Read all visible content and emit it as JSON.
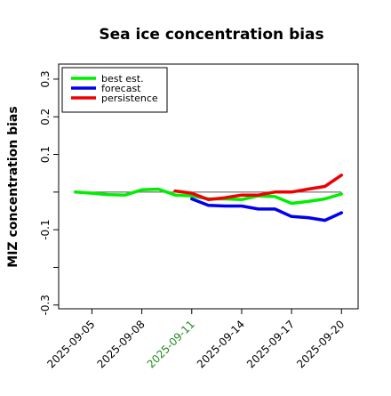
{
  "chart_data": {
    "type": "line",
    "title": "Sea ice concentration bias",
    "xlabel": "",
    "ylabel": "MIZ concentration bias",
    "ylim": [
      -0.31,
      0.34
    ],
    "xlim": [
      "2025-09-03",
      "2025-09-21"
    ],
    "reference_line": 0,
    "grid": false,
    "legend_position": "top-left",
    "y_ticks": [
      {
        "value": 0.3,
        "label": "0.3"
      },
      {
        "value": 0.2,
        "label": "0.2"
      },
      {
        "value": 0.1,
        "label": "0.1"
      },
      {
        "value": 0.0,
        "label": ""
      },
      {
        "value": -0.1,
        "label": "-0.1"
      },
      {
        "value": -0.2,
        "label": ""
      },
      {
        "value": -0.3,
        "label": "-0.3"
      }
    ],
    "x_ticks": [
      {
        "value": "2025-09-05",
        "label": "2025-09-05",
        "color": "#000000"
      },
      {
        "value": "2025-09-08",
        "label": "2025-09-08",
        "color": "#000000"
      },
      {
        "value": "2025-09-11",
        "label": "2025-09-11",
        "color": "#228b22"
      },
      {
        "value": "2025-09-14",
        "label": "2025-09-14",
        "color": "#000000"
      },
      {
        "value": "2025-09-17",
        "label": "2025-09-17",
        "color": "#000000"
      },
      {
        "value": "2025-09-20",
        "label": "2025-09-20",
        "color": "#000000"
      }
    ],
    "series": [
      {
        "name": "best est.",
        "color": "#00ee00",
        "points": [
          [
            "2025-09-04",
            0.0
          ],
          [
            "2025-09-05",
            -0.003
          ],
          [
            "2025-09-06",
            -0.007
          ],
          [
            "2025-09-07",
            -0.008
          ],
          [
            "2025-09-08",
            0.006
          ],
          [
            "2025-09-09",
            0.008
          ],
          [
            "2025-09-10",
            -0.008
          ],
          [
            "2025-09-11",
            -0.01
          ],
          [
            "2025-09-12",
            -0.018
          ],
          [
            "2025-09-13",
            -0.018
          ],
          [
            "2025-09-14",
            -0.02
          ],
          [
            "2025-09-15",
            -0.01
          ],
          [
            "2025-09-16",
            -0.012
          ],
          [
            "2025-09-17",
            -0.03
          ],
          [
            "2025-09-18",
            -0.025
          ],
          [
            "2025-09-19",
            -0.018
          ],
          [
            "2025-09-20",
            -0.005
          ]
        ]
      },
      {
        "name": "forecast",
        "color": "#0000ee",
        "points": [
          [
            "2025-09-11",
            -0.018
          ],
          [
            "2025-09-12",
            -0.035
          ],
          [
            "2025-09-13",
            -0.037
          ],
          [
            "2025-09-14",
            -0.037
          ],
          [
            "2025-09-15",
            -0.045
          ],
          [
            "2025-09-16",
            -0.045
          ],
          [
            "2025-09-17",
            -0.065
          ],
          [
            "2025-09-18",
            -0.068
          ],
          [
            "2025-09-19",
            -0.075
          ],
          [
            "2025-09-20",
            -0.055
          ]
        ]
      },
      {
        "name": "persistence",
        "color": "#ee0000",
        "points": [
          [
            "2025-09-10",
            0.003
          ],
          [
            "2025-09-11",
            -0.003
          ],
          [
            "2025-09-12",
            -0.02
          ],
          [
            "2025-09-13",
            -0.015
          ],
          [
            "2025-09-14",
            -0.008
          ],
          [
            "2025-09-15",
            -0.008
          ],
          [
            "2025-09-16",
            0.0
          ],
          [
            "2025-09-17",
            0.0
          ],
          [
            "2025-09-18",
            0.008
          ],
          [
            "2025-09-19",
            0.015
          ],
          [
            "2025-09-20",
            0.045
          ]
        ]
      }
    ]
  }
}
